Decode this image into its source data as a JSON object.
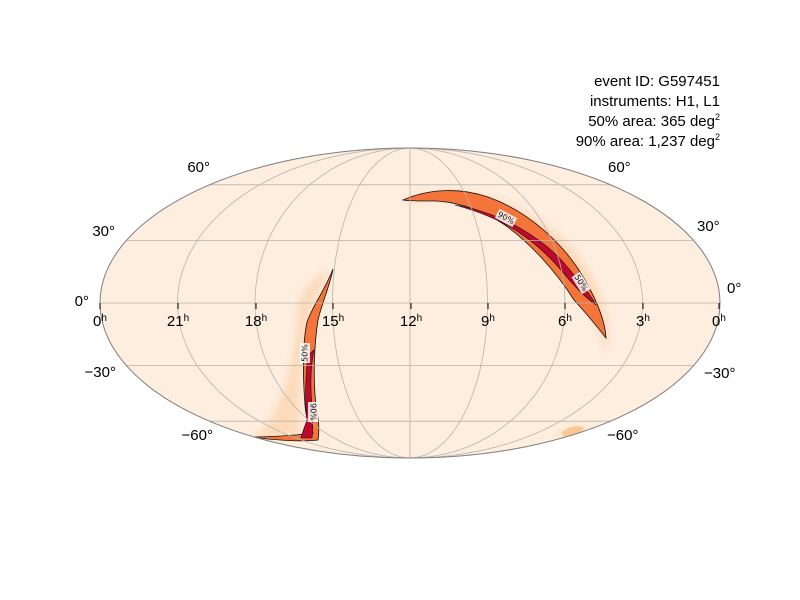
{
  "info": {
    "event_id": "event ID: G597451",
    "instruments": "instruments: H1, L1",
    "area50_text": "50% area: 365 deg",
    "area90_text": "90% area: 1,237 deg",
    "area_unit_exponent": "2"
  },
  "map": {
    "projection": "mollweide",
    "ra_hour_labels": [
      "0",
      "21",
      "18",
      "15",
      "12",
      "9",
      "6",
      "3",
      "0"
    ],
    "ra_hour_suffix": "h",
    "dec_labels_left": [
      "60°",
      "30°",
      "0°",
      "−30°",
      "−60°"
    ],
    "dec_labels_right": [
      "60°",
      "30°",
      "0°",
      "−30°",
      "−60°"
    ],
    "contour_labels": [
      "90%",
      "50%",
      "50%",
      "90%"
    ],
    "colors": {
      "background_fill": "#fdeedf",
      "grid": "#b9b3ad",
      "outline": "#808080",
      "prob_low": "#fbbf86",
      "prob_mid": "#f4743a",
      "prob_high": "#c0082f",
      "contour": "#111111"
    }
  }
}
